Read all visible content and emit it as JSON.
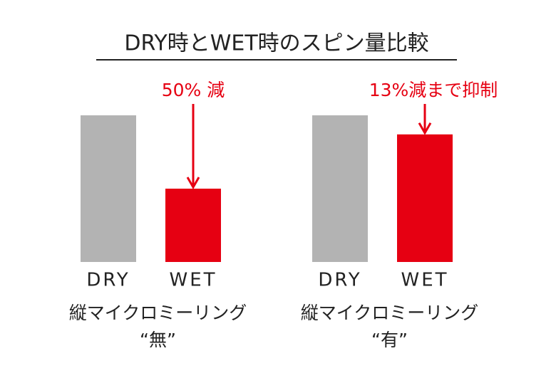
{
  "chart_data": {
    "type": "bar",
    "title": "DRY時とWET時のスピン量比較",
    "panels": [
      {
        "categories": [
          "DRY",
          "WET"
        ],
        "values": [
          100,
          50
        ],
        "colors": [
          "#b3b3b3",
          "#e60012"
        ],
        "annotation": "50% 減",
        "label": [
          "縦マイクロミーリング",
          "“無”"
        ]
      },
      {
        "categories": [
          "DRY",
          "WET"
        ],
        "values": [
          100,
          87
        ],
        "colors": [
          "#b3b3b3",
          "#e60012"
        ],
        "annotation": "13%減まで抑制",
        "label": [
          "縦マイクロミーリング",
          "“有”"
        ]
      }
    ]
  }
}
